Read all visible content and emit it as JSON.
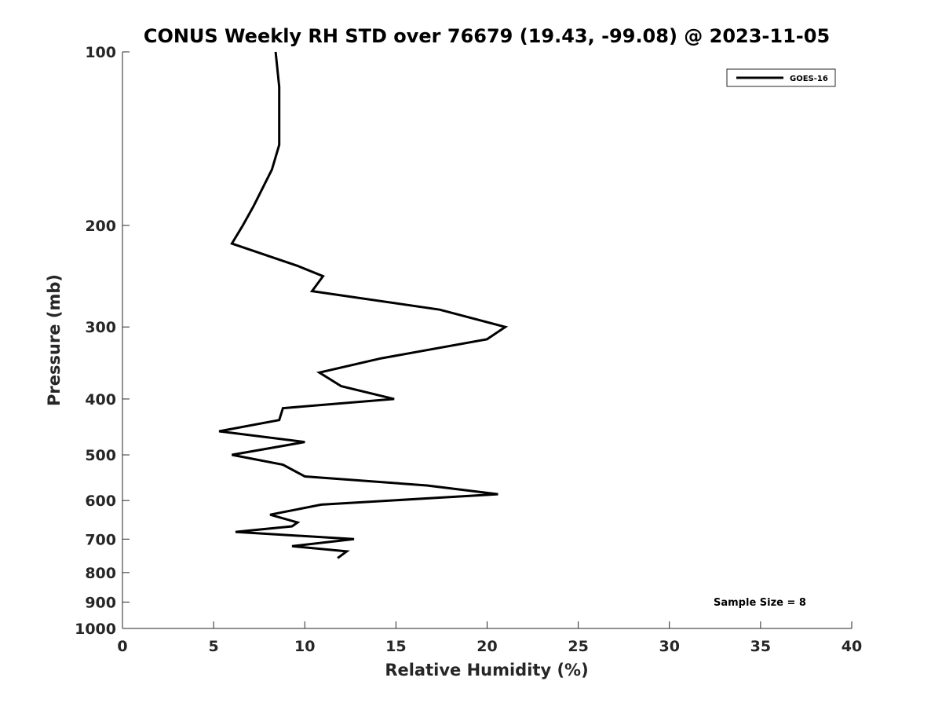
{
  "chart_data": {
    "type": "line",
    "title": "CONUS Weekly RH STD over 76679 (19.43, -99.08) @ 2023-11-05",
    "xlabel": "Relative Humidity (%)",
    "ylabel": "Pressure (mb)",
    "xlim": [
      0,
      40
    ],
    "ylim": [
      100,
      1000
    ],
    "y_scale": "log",
    "y_reversed": true,
    "grid": false,
    "legend_position": "top-right",
    "x_ticks": [
      0,
      5,
      10,
      15,
      20,
      25,
      30,
      35,
      40
    ],
    "x_tick_labels": [
      "0",
      "5",
      "10",
      "15",
      "20",
      "25",
      "30",
      "35",
      "40"
    ],
    "y_ticks": [
      100,
      200,
      300,
      400,
      500,
      600,
      700,
      800,
      900,
      1000
    ],
    "y_tick_labels": [
      "100",
      "200",
      "300",
      "400",
      "500",
      "600",
      "700",
      "800",
      "900",
      "1000"
    ],
    "series": [
      {
        "name": "GOES-16",
        "color": "#000000",
        "points": [
          {
            "x": 8.4,
            "y": 100
          },
          {
            "x": 8.6,
            "y": 115
          },
          {
            "x": 8.6,
            "y": 130
          },
          {
            "x": 8.6,
            "y": 145
          },
          {
            "x": 8.2,
            "y": 160
          },
          {
            "x": 7.2,
            "y": 185
          },
          {
            "x": 6.6,
            "y": 200
          },
          {
            "x": 6.0,
            "y": 215
          },
          {
            "x": 9.6,
            "y": 235
          },
          {
            "x": 11.0,
            "y": 245
          },
          {
            "x": 10.4,
            "y": 260
          },
          {
            "x": 17.4,
            "y": 280
          },
          {
            "x": 21.0,
            "y": 300
          },
          {
            "x": 20.0,
            "y": 315
          },
          {
            "x": 14.2,
            "y": 340
          },
          {
            "x": 10.8,
            "y": 360
          },
          {
            "x": 12.0,
            "y": 380
          },
          {
            "x": 14.9,
            "y": 400
          },
          {
            "x": 8.8,
            "y": 415
          },
          {
            "x": 8.6,
            "y": 435
          },
          {
            "x": 5.3,
            "y": 455
          },
          {
            "x": 10.0,
            "y": 475
          },
          {
            "x": 6.0,
            "y": 500
          },
          {
            "x": 8.8,
            "y": 520
          },
          {
            "x": 10.0,
            "y": 545
          },
          {
            "x": 16.7,
            "y": 565
          },
          {
            "x": 20.6,
            "y": 585
          },
          {
            "x": 10.9,
            "y": 610
          },
          {
            "x": 8.1,
            "y": 635
          },
          {
            "x": 9.6,
            "y": 655
          },
          {
            "x": 9.3,
            "y": 665
          },
          {
            "x": 6.2,
            "y": 680
          },
          {
            "x": 12.7,
            "y": 700
          },
          {
            "x": 9.3,
            "y": 720
          },
          {
            "x": 12.3,
            "y": 735
          },
          {
            "x": 11.8,
            "y": 755
          }
        ]
      }
    ],
    "annotations": [
      {
        "text": "Sample Size = 8",
        "position": "bottom-right"
      }
    ]
  }
}
